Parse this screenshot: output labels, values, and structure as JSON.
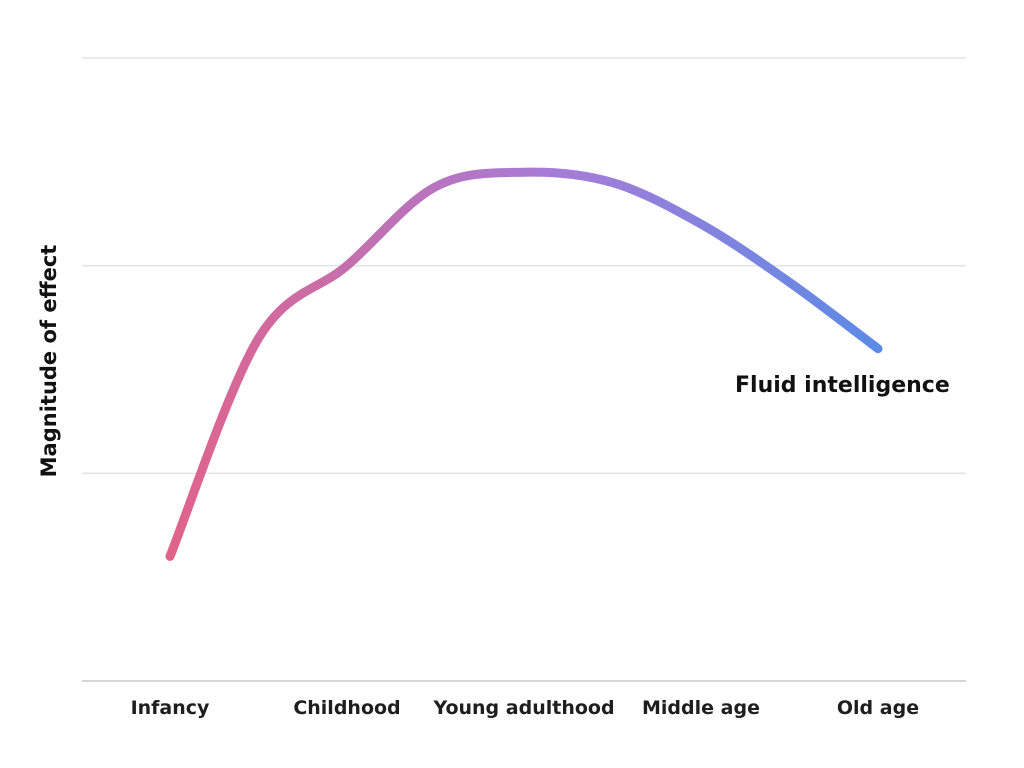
{
  "chart_data": {
    "type": "line",
    "title": "",
    "xlabel": "",
    "ylabel": "Magnitude of effect",
    "categories": [
      "Infancy",
      "Childhood",
      "Young adulthood",
      "Middle age",
      "Old age"
    ],
    "ylim": [
      0,
      3
    ],
    "grid": true,
    "legend": "none",
    "series": [
      {
        "name": "Fluid intelligence",
        "x": [
          0,
          0.5,
          1,
          1.5,
          2,
          2.5,
          3,
          3.5,
          4
        ],
        "values": [
          0.6,
          1.65,
          2.0,
          2.38,
          2.45,
          2.4,
          2.2,
          1.92,
          1.6
        ],
        "colors": [
          "#e0638a",
          "#a57cd8",
          "#5b8be6"
        ]
      }
    ]
  }
}
